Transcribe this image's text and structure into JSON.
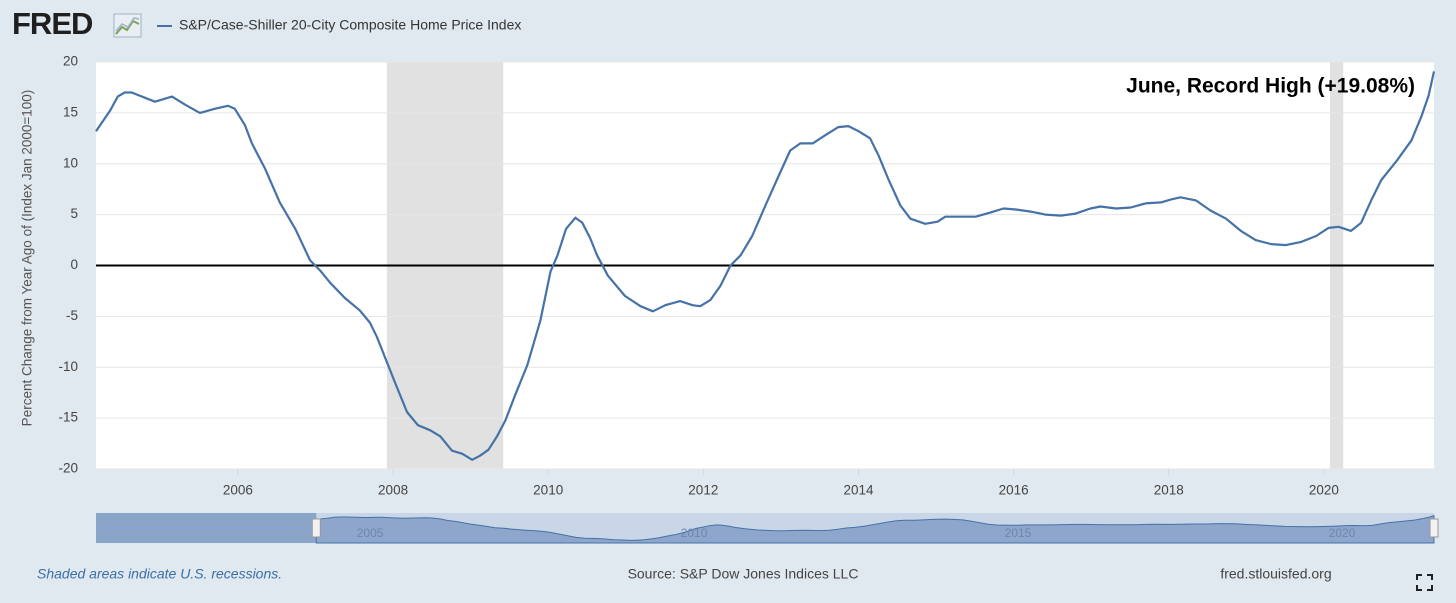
{
  "header": {
    "logo": "FRED"
  },
  "chart_data": {
    "type": "line",
    "series": [
      {
        "name": "S&P/Case-Shiller 20-City Composite Home Price Index",
        "color": "#4572a7",
        "values": [
          13.2,
          15.2,
          16.6,
          17.0,
          17.0,
          16.1,
          16.6,
          15.8,
          15.0,
          15.4,
          15.7,
          15.4,
          13.8,
          12.0,
          9.5,
          6.2,
          3.6,
          0.5,
          -0.5,
          -1.7,
          -3.2,
          -4.4,
          -5.6,
          -7.0,
          -9.1,
          -11.6,
          -14.4,
          -15.7,
          -16.2,
          -16.8,
          -18.2,
          -18.5,
          -19.1,
          -18.7,
          -18.1,
          -16.8,
          -15.2,
          -12.8,
          -9.8,
          -5.4,
          -0.6,
          1.0,
          3.6,
          4.7,
          4.2,
          2.7,
          1.0,
          -1.0,
          -3.0,
          -4.0,
          -4.5,
          -3.9,
          -3.5,
          -3.9,
          -4.0,
          -3.4,
          -2.0,
          0.0,
          1.0,
          2.9,
          5.9,
          8.8,
          11.3,
          12.0,
          12.0,
          12.8,
          13.6,
          13.7,
          13.2,
          12.5,
          10.8,
          8.4,
          5.9,
          4.6,
          4.1,
          4.3,
          4.8,
          4.8,
          4.8,
          5.2,
          5.6,
          5.5,
          5.3,
          5.0,
          4.9,
          5.1,
          5.6,
          5.8,
          5.6,
          5.7,
          6.1,
          6.2,
          6.5,
          6.7,
          6.4,
          5.4,
          4.6,
          3.4,
          2.5,
          2.1,
          2.0,
          2.3,
          2.9,
          3.7,
          3.8,
          3.4,
          4.2,
          6.4,
          8.4,
          10.3,
          12.3,
          14.7,
          16.7,
          19.08
        ]
      }
    ],
    "x": [
      2004.17,
      2004.35,
      2004.45,
      2004.54,
      2004.63,
      2004.93,
      2005.15,
      2005.32,
      2005.51,
      2005.7,
      2005.87,
      2005.96,
      2006.09,
      2006.18,
      2006.35,
      2006.54,
      2006.74,
      2006.93,
      2007.06,
      2007.19,
      2007.38,
      2007.57,
      2007.7,
      2007.79,
      2007.9,
      2008.03,
      2008.18,
      2008.32,
      2008.48,
      2008.61,
      2008.76,
      2008.89,
      2009.02,
      2009.12,
      2009.23,
      2009.34,
      2009.45,
      2009.57,
      2009.73,
      2009.9,
      2010.03,
      2010.12,
      2010.23,
      2010.35,
      2010.44,
      2010.54,
      2010.63,
      2010.77,
      2010.99,
      2011.19,
      2011.35,
      2011.51,
      2011.7,
      2011.86,
      2011.96,
      2012.09,
      2012.22,
      2012.35,
      2012.48,
      2012.63,
      2012.8,
      2012.97,
      2013.12,
      2013.25,
      2013.41,
      2013.57,
      2013.74,
      2013.87,
      2014.0,
      2014.15,
      2014.26,
      2014.39,
      2014.54,
      2014.67,
      2014.86,
      2015.02,
      2015.12,
      2015.32,
      2015.51,
      2015.7,
      2015.87,
      2016.03,
      2016.22,
      2016.41,
      2016.61,
      2016.8,
      2016.99,
      2017.12,
      2017.32,
      2017.51,
      2017.7,
      2017.9,
      2018.03,
      2018.15,
      2018.35,
      2018.54,
      2018.74,
      2018.93,
      2019.12,
      2019.32,
      2019.51,
      2019.7,
      2019.9,
      2020.06,
      2020.19,
      2020.35,
      2020.48,
      2020.61,
      2020.74,
      2020.94,
      2021.13,
      2021.26,
      2021.35,
      2021.42
    ],
    "xlim": [
      2004.17,
      2021.42
    ],
    "xticks": [
      2006,
      2008,
      2010,
      2012,
      2014,
      2016,
      2018,
      2020
    ],
    "ylim": [
      -20,
      20
    ],
    "yticks": [
      -20,
      -15,
      -10,
      -5,
      0,
      5,
      10,
      15,
      20
    ],
    "ylabel": "Percent Change from Year Ago of (Index Jan 2000=100)",
    "grid": true,
    "recessions": [
      [
        2007.92,
        2009.42
      ],
      [
        2020.08,
        2020.25
      ]
    ],
    "annotation": "June, Record High (+19.08%)",
    "navigator_xlim": [
      2000.77,
      2021.42
    ],
    "navigator_ticks": [
      2005,
      2010,
      2015,
      2020
    ]
  },
  "footer": {
    "note": "Shaded areas indicate U.S. recessions.",
    "source": "Source: S&P Dow Jones Indices LLC",
    "site": "fred.stlouisfed.org"
  }
}
